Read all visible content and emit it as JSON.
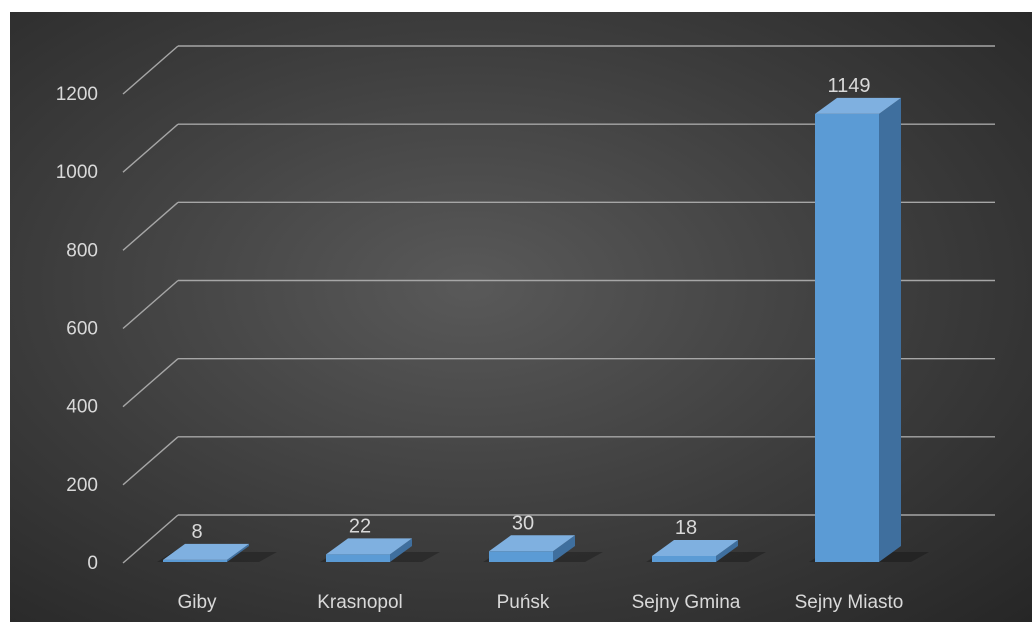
{
  "chart_data": {
    "type": "bar",
    "style": "3d-column",
    "categories": [
      "Giby",
      "Krasnopol",
      "Puńsk",
      "Sejny Gmina",
      "Sejny Miasto"
    ],
    "values": [
      8,
      22,
      30,
      18,
      1149
    ],
    "data_labels": [
      "8",
      "22",
      "30",
      "18",
      "1149"
    ],
    "y_ticks": [
      "0",
      "200",
      "400",
      "600",
      "800",
      "1000",
      "1200"
    ],
    "ylim": [
      0,
      1200
    ],
    "grid": true,
    "legend": "none",
    "colors": {
      "background": "#404040",
      "bar_front": "#5b9bd5",
      "bar_top": "#7fb0e0",
      "bar_side": "#3f6f9e",
      "gridline": "#a6a6a6",
      "text": "#d9d9d9"
    }
  }
}
